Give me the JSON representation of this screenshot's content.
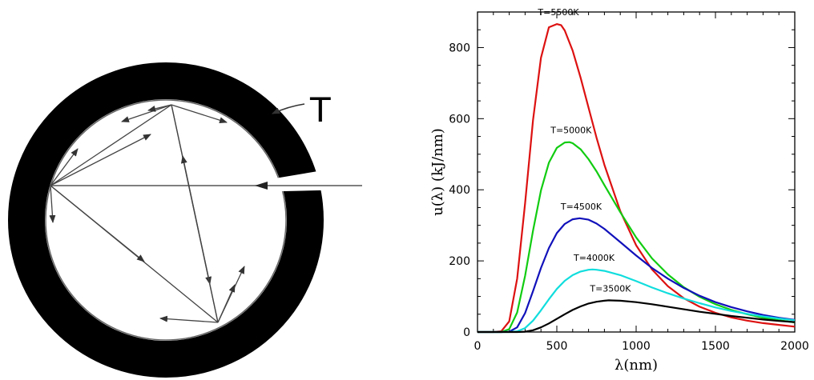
{
  "cavity": {
    "label": "T"
  },
  "chart_data": {
    "type": "line",
    "xlabel": "λ(nm)",
    "ylabel": "u(λ)  (kJ/nm)",
    "xlim": [
      0,
      2000
    ],
    "ylim": [
      0,
      900
    ],
    "xticks": [
      0,
      500,
      1000,
      1500,
      2000
    ],
    "yticks": [
      0,
      200,
      400,
      600,
      800
    ],
    "grid": false,
    "legend": "none",
    "series": [
      {
        "name": "T=5500K",
        "color": "#dd1111",
        "x": [
          0,
          100,
          150,
          200,
          250,
          300,
          350,
          400,
          450,
          500,
          527,
          550,
          600,
          650,
          700,
          750,
          800,
          900,
          1000,
          1100,
          1200,
          1300,
          1400,
          1500,
          1600,
          1700,
          1800,
          1900,
          2000
        ],
        "values": [
          0,
          0,
          2,
          30,
          150,
          362,
          596,
          771,
          857,
          866,
          863,
          848,
          791,
          715,
          631,
          547,
          470,
          340,
          244,
          176,
          129,
          95,
          71,
          54,
          41,
          32,
          25,
          20,
          15
        ]
      },
      {
        "name": "T=5000K",
        "color": "#11cc11",
        "x": [
          0,
          150,
          200,
          250,
          300,
          350,
          400,
          450,
          500,
          550,
          580,
          600,
          650,
          700,
          750,
          800,
          900,
          1000,
          1100,
          1200,
          1300,
          1400,
          1500,
          1600,
          1700,
          1800,
          1900,
          2000
        ],
        "values": [
          0,
          0,
          8,
          55,
          158,
          285,
          398,
          476,
          518,
          533,
          534,
          531,
          514,
          486,
          452,
          413,
          337,
          266,
          207,
          162,
          126,
          99,
          78,
          62,
          50,
          40,
          33,
          27
        ]
      },
      {
        "name": "T=4500K",
        "color": "#1111bb",
        "x": [
          0,
          150,
          200,
          250,
          300,
          350,
          400,
          450,
          500,
          550,
          600,
          644,
          700,
          750,
          800,
          900,
          1000,
          1100,
          1200,
          1300,
          1400,
          1500,
          1600,
          1700,
          1800,
          1900,
          2000
        ],
        "values": [
          0,
          0,
          1,
          13,
          53,
          115,
          180,
          236,
          278,
          304,
          317,
          320,
          316,
          305,
          290,
          253,
          215,
          180,
          150,
          124,
          102,
          84,
          70,
          58,
          48,
          40,
          34
        ]
      },
      {
        "name": "T=4000K",
        "color": "#11dddd",
        "x": [
          0,
          200,
          250,
          300,
          350,
          400,
          450,
          500,
          550,
          600,
          650,
          700,
          725,
          750,
          800,
          900,
          1000,
          1100,
          1200,
          1300,
          1400,
          1500,
          1600,
          1700,
          1800,
          1900,
          2000
        ],
        "values": [
          0,
          0,
          2,
          11,
          32,
          61,
          92,
          121,
          144,
          160,
          170,
          175,
          176,
          175,
          172,
          160,
          143,
          125,
          109,
          94,
          81,
          69,
          59,
          51,
          44,
          38,
          33
        ]
      },
      {
        "name": "T=3500K",
        "color": "#000000",
        "x": [
          0,
          250,
          300,
          350,
          400,
          450,
          500,
          550,
          600,
          650,
          700,
          750,
          800,
          828,
          900,
          1000,
          1100,
          1200,
          1300,
          1400,
          1500,
          1600,
          1700,
          1800,
          1900,
          2000
        ],
        "values": [
          0,
          0,
          1,
          5,
          13,
          24,
          37,
          50,
          62,
          72,
          80,
          85,
          88,
          89,
          88,
          84,
          78,
          71,
          64,
          57,
          51,
          45,
          40,
          35,
          31,
          28
        ]
      }
    ]
  }
}
